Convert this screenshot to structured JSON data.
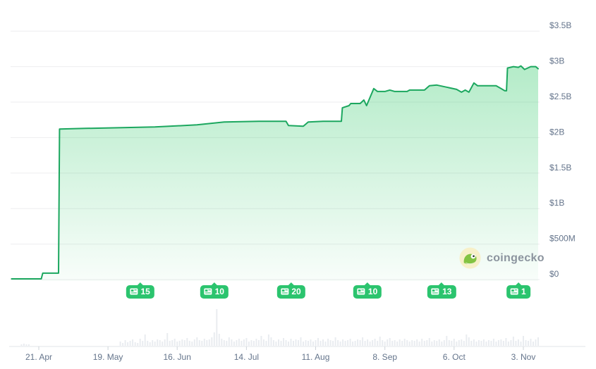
{
  "watermark": {
    "label": "coingecko"
  },
  "chart_data": {
    "type": "area",
    "value_unit": "USD",
    "legend_position": "none",
    "grid": "horizontal",
    "y_ticks": [
      {
        "label": "$3.5B",
        "value": 3.5
      },
      {
        "label": "$3B",
        "value": 3.0
      },
      {
        "label": "$2.5B",
        "value": 2.5
      },
      {
        "label": "$2B",
        "value": 2.0
      },
      {
        "label": "$1.5B",
        "value": 1.5
      },
      {
        "label": "$1B",
        "value": 1.0
      },
      {
        "label": "$500M",
        "value": 0.5
      },
      {
        "label": "$0",
        "value": 0.0
      }
    ],
    "x_ticks": [
      {
        "label": "21. Apr",
        "day": 11
      },
      {
        "label": "19. May",
        "day": 39
      },
      {
        "label": "16. Jun",
        "day": 67
      },
      {
        "label": "14. Jul",
        "day": 95
      },
      {
        "label": "11. Aug",
        "day": 123
      },
      {
        "label": "8. Sep",
        "day": 151
      },
      {
        "label": "6. Oct",
        "day": 179
      },
      {
        "label": "3. Nov",
        "day": 207
      }
    ],
    "ylim": [
      0,
      3.5
    ],
    "xlim_days": [
      0,
      213
    ],
    "series": {
      "name": "market-cap-billions-usd",
      "points": [
        [
          0,
          0.01
        ],
        [
          12,
          0.01
        ],
        [
          12.6,
          0.09
        ],
        [
          19,
          0.09
        ],
        [
          19.4,
          2.12
        ],
        [
          30,
          2.13
        ],
        [
          45,
          2.14
        ],
        [
          58,
          2.15
        ],
        [
          75,
          2.18
        ],
        [
          86,
          2.22
        ],
        [
          100,
          2.23
        ],
        [
          111,
          2.23
        ],
        [
          112,
          2.17
        ],
        [
          118,
          2.16
        ],
        [
          120,
          2.22
        ],
        [
          126,
          2.23
        ],
        [
          133.4,
          2.23
        ],
        [
          133.8,
          2.42
        ],
        [
          136.5,
          2.45
        ],
        [
          137.2,
          2.48
        ],
        [
          141,
          2.48
        ],
        [
          142.5,
          2.53
        ],
        [
          143.6,
          2.45
        ],
        [
          146.5,
          2.69
        ],
        [
          148,
          2.65
        ],
        [
          151,
          2.65
        ],
        [
          153,
          2.67
        ],
        [
          155,
          2.65
        ],
        [
          160,
          2.65
        ],
        [
          161,
          2.67
        ],
        [
          167,
          2.67
        ],
        [
          169,
          2.73
        ],
        [
          172,
          2.74
        ],
        [
          176,
          2.71
        ],
        [
          180,
          2.68
        ],
        [
          182,
          2.64
        ],
        [
          183.5,
          2.67
        ],
        [
          185,
          2.64
        ],
        [
          187,
          2.77
        ],
        [
          188.5,
          2.73
        ],
        [
          196,
          2.73
        ],
        [
          198,
          2.69
        ],
        [
          199.5,
          2.66
        ],
        [
          200.2,
          2.66
        ],
        [
          200.6,
          2.98
        ],
        [
          203,
          3.0
        ],
        [
          205,
          2.99
        ],
        [
          206,
          3.01
        ],
        [
          207.5,
          2.96
        ],
        [
          210,
          3.0
        ],
        [
          212,
          3.0
        ],
        [
          213,
          2.97
        ]
      ]
    },
    "badges": [
      {
        "count": "15",
        "day": 52
      },
      {
        "count": "10",
        "day": 82
      },
      {
        "count": "20",
        "day": 113
      },
      {
        "count": "10",
        "day": 144
      },
      {
        "count": "13",
        "day": 174
      },
      {
        "count": "1",
        "day": 205
      }
    ],
    "volume": {
      "start_day": 44,
      "step": 1,
      "heights": [
        6,
        4,
        8,
        5,
        7,
        9,
        5,
        4,
        10,
        7,
        16,
        7,
        5,
        8,
        6,
        9,
        8,
        6,
        9,
        18,
        7,
        8,
        10,
        6,
        7,
        9,
        8,
        11,
        7,
        6,
        9,
        12,
        8,
        7,
        10,
        8,
        9,
        12,
        19,
        52,
        17,
        10,
        8,
        7,
        12,
        9,
        6,
        8,
        10,
        7,
        9,
        11,
        6,
        8,
        7,
        10,
        8,
        14,
        9,
        7,
        16,
        12,
        8,
        6,
        9,
        7,
        11,
        8,
        6,
        10,
        7,
        9,
        8,
        12,
        6,
        8,
        7,
        9,
        6,
        8,
        11,
        7,
        9,
        6,
        10,
        8,
        7,
        12,
        8,
        6,
        9,
        7,
        8,
        10,
        6,
        7,
        9,
        8,
        12,
        7,
        9,
        6,
        8,
        10,
        7,
        13,
        8,
        6,
        9,
        11,
        7,
        8,
        6,
        9,
        7,
        10,
        8,
        6,
        8,
        7,
        9,
        6,
        10,
        7,
        8,
        11,
        6,
        8,
        7,
        9,
        6,
        8,
        14,
        8,
        7,
        10,
        6,
        8,
        9,
        7,
        16,
        12,
        7,
        9,
        6,
        8,
        7,
        9,
        6,
        8,
        7,
        10,
        6,
        8,
        9,
        7,
        11,
        6,
        8,
        13,
        7,
        9,
        6,
        14,
        8,
        7,
        10,
        6,
        9,
        12
      ],
      "sparse": [
        [
          4,
          2
        ],
        [
          5,
          3
        ],
        [
          6,
          2
        ],
        [
          7,
          2
        ]
      ]
    },
    "colors": {
      "line": "#1ca75f",
      "fill": "#22c55e",
      "badge": "#2bc46e",
      "grid": "#ededef",
      "axis_line": "#e2e5e9",
      "tick": "#cfd4da",
      "volume_bar": "#e9ecf0",
      "label_text": "#64748b"
    }
  }
}
